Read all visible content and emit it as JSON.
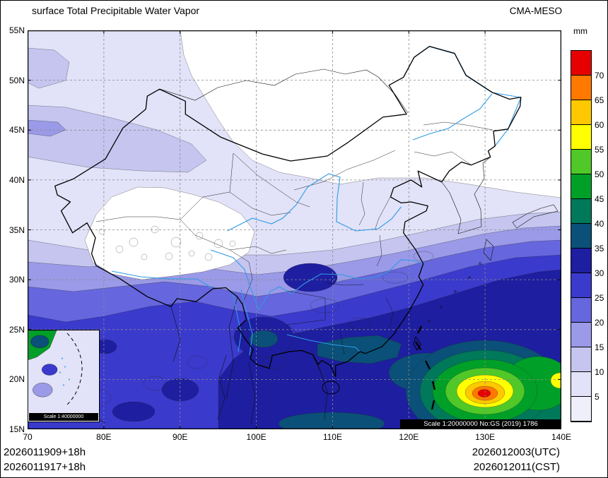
{
  "header": {
    "title": "surface Total Precipitable Water Vapor",
    "model": "CMA-MESO"
  },
  "colorbar": {
    "unit": "mm",
    "tick_labels": [
      "70",
      "65",
      "60",
      "55",
      "50",
      "45",
      "40",
      "35",
      "30",
      "25",
      "20",
      "15",
      "10",
      "5"
    ],
    "colors": [
      "#e60000",
      "#ff7800",
      "#ffc800",
      "#ffff00",
      "#50c828",
      "#00a028",
      "#00785a",
      "#0a5078",
      "#1e1ea0",
      "#3a3acd",
      "#6666de",
      "#9a9ae8",
      "#c5c5f0",
      "#e2e2f8",
      "#efeffc"
    ]
  },
  "axes": {
    "lat_labels": [
      "55N",
      "50N",
      "45N",
      "40N",
      "35N",
      "30N",
      "25N",
      "20N",
      "15N"
    ],
    "lon_labels": [
      "70",
      "80E",
      "90E",
      "100E",
      "110E",
      "120E",
      "130E",
      "140E"
    ]
  },
  "map": {
    "scale_note": "Scale 1:20000000 No:GS (2019) 1786",
    "inset_scale": "Scale 1:40000000",
    "river_color": "#2e9be6",
    "grid_color": "#8a8a8a"
  },
  "footer": {
    "line1_left": "2026011909+18h",
    "line2_left": "2026011917+18h",
    "line1_right": "2026012003(UTC)",
    "line2_right": "2026012011(CST)"
  }
}
